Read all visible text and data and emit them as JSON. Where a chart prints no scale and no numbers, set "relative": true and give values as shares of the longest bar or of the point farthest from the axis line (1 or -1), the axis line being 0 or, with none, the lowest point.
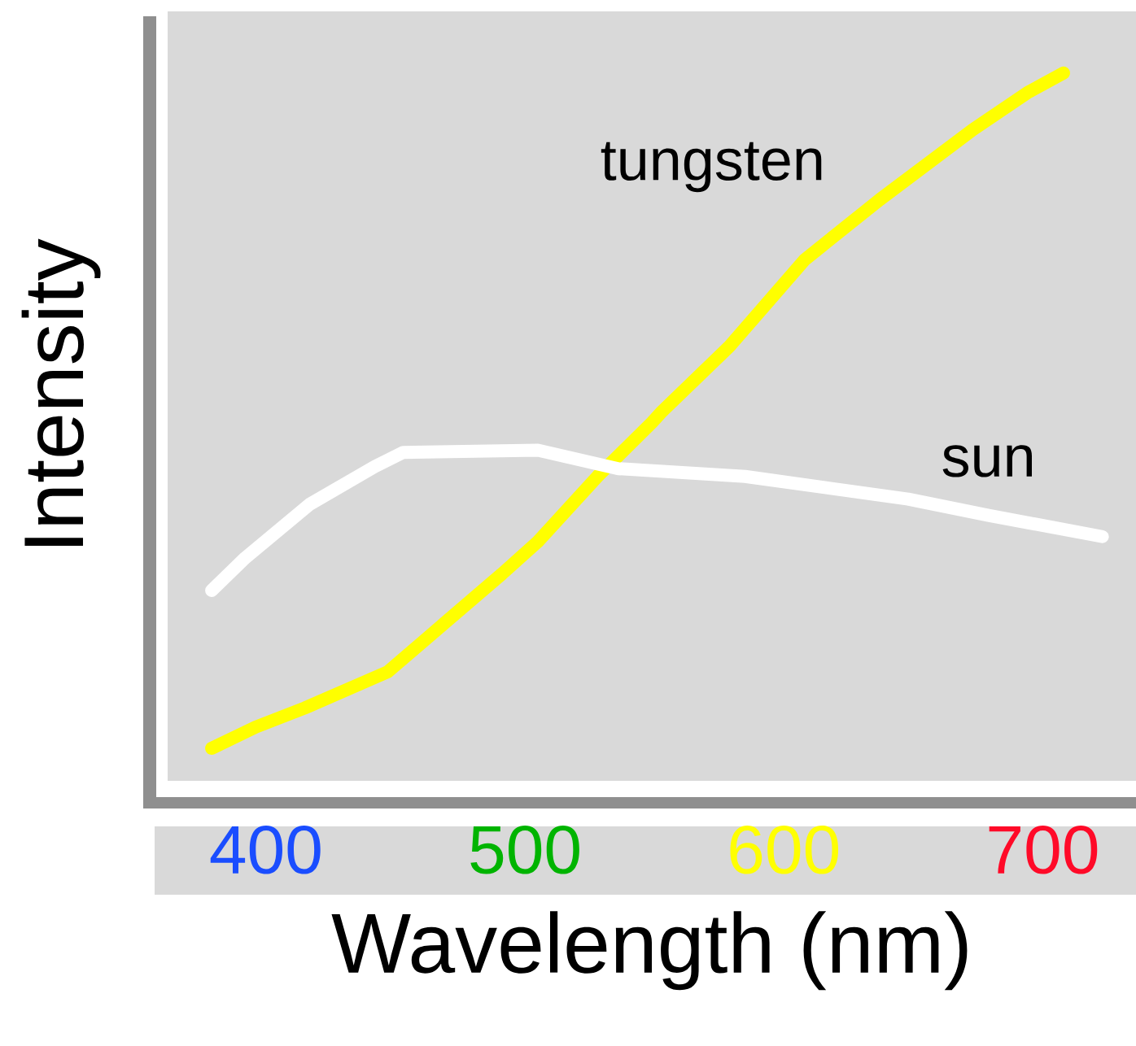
{
  "chart_data": {
    "type": "line",
    "xlabel": "Wavelength (nm)",
    "ylabel": "Intensity",
    "relative": true,
    "xlim": [
      362,
      736
    ],
    "xticks": [
      400,
      500,
      600,
      700
    ],
    "legend": false,
    "series": [
      {
        "name": "tungsten",
        "color": "#ffff00",
        "x": [
          379,
          396,
          415,
          447,
          469,
          491,
          505,
          528,
          549,
          553,
          579,
          608,
          637,
          673,
          694,
          708
        ],
        "values": [
          0.046,
          0.076,
          0.103,
          0.154,
          0.223,
          0.292,
          0.338,
          0.43,
          0.506,
          0.522,
          0.614,
          0.736,
          0.821,
          0.92,
          0.972,
          1.0
        ]
      },
      {
        "name": "sun",
        "color": "#ffffff",
        "x": [
          379,
          392,
          417,
          442,
          453,
          505,
          536,
          585,
          648,
          679,
          723
        ],
        "values": [
          0.269,
          0.315,
          0.391,
          0.444,
          0.464,
          0.467,
          0.441,
          0.43,
          0.398,
          0.375,
          0.345
        ]
      }
    ]
  }
}
